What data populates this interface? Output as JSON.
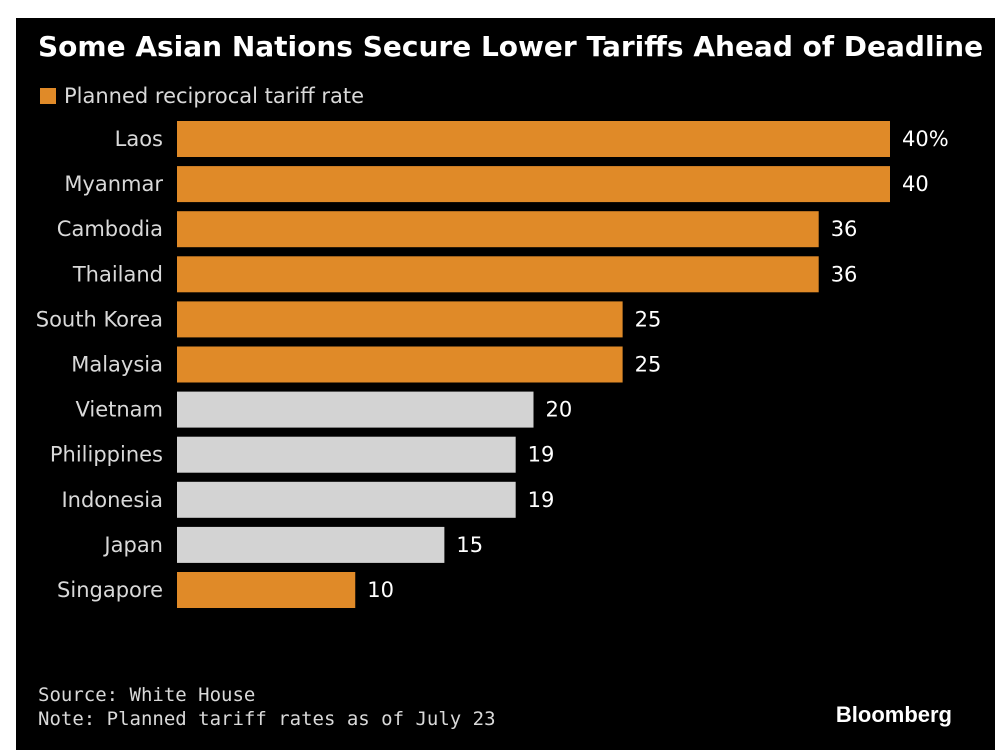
{
  "chart_data": {
    "type": "bar",
    "orientation": "horizontal",
    "title": "Some Asian Nations Secure Lower Tariffs Ahead of Deadline",
    "legend": [
      {
        "label": "Planned reciprocal tariff rate",
        "color": "#e08a28"
      }
    ],
    "categories": [
      "Laos",
      "Myanmar",
      "Cambodia",
      "Thailand",
      "South Korea",
      "Malaysia",
      "Vietnam",
      "Philippines",
      "Indonesia",
      "Japan",
      "Singapore"
    ],
    "values": [
      40,
      40,
      36,
      36,
      25,
      25,
      20,
      19,
      19,
      15,
      10
    ],
    "value_labels": [
      "40%",
      "40",
      "36",
      "36",
      "25",
      "25",
      "20",
      "19",
      "19",
      "15",
      "10"
    ],
    "highlight": [
      true,
      true,
      true,
      true,
      true,
      true,
      false,
      false,
      false,
      false,
      true
    ],
    "colors": {
      "highlight": "#e08a28",
      "other": "#d3d3d3"
    },
    "xlim": [
      0,
      40
    ],
    "grid": false
  },
  "source": "Source: White House",
  "note": "Note: Planned tariff rates as of July 23",
  "brand": "Bloomberg"
}
